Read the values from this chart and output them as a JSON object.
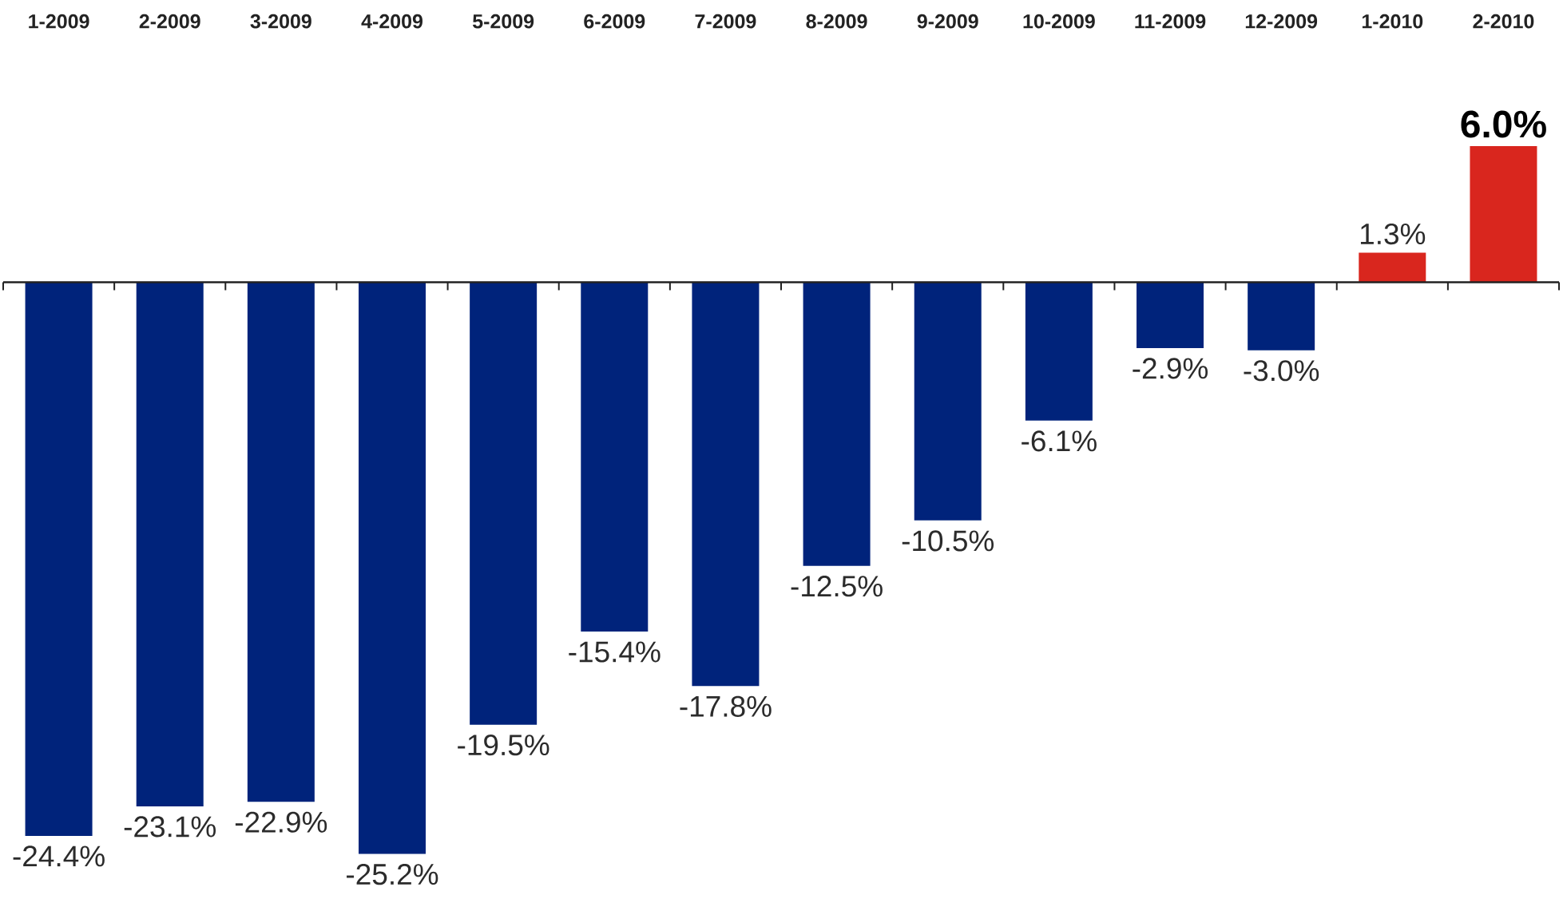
{
  "chart_data": {
    "type": "bar",
    "categories": [
      "1-2009",
      "2-2009",
      "3-2009",
      "4-2009",
      "5-2009",
      "6-2009",
      "7-2009",
      "8-2009",
      "9-2009",
      "10-2009",
      "11-2009",
      "12-2009",
      "1-2010",
      "2-2010"
    ],
    "values": [
      -24.4,
      -23.1,
      -22.9,
      -25.2,
      -19.5,
      -15.4,
      -17.8,
      -12.5,
      -10.5,
      -6.1,
      -2.9,
      -3.0,
      1.3,
      6.0
    ],
    "colors": [
      "#00237b",
      "#00237b",
      "#00237b",
      "#00237b",
      "#00237b",
      "#00237b",
      "#00237b",
      "#00237b",
      "#00237b",
      "#00237b",
      "#00237b",
      "#00237b",
      "#d9261e",
      "#d9261e"
    ],
    "value_labels": [
      "-24.4%",
      "-23.1%",
      "-22.9%",
      "-25.2%",
      "-19.5%",
      "-15.4%",
      "-17.8%",
      "-12.5%",
      "-10.5%",
      "-6.1%",
      "-2.9%",
      "-3.0%",
      "1.3%",
      "6.0%"
    ]
  }
}
